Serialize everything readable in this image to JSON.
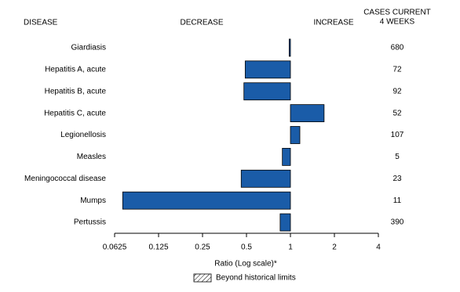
{
  "chart_data": {
    "type": "hbar",
    "column_headers": {
      "disease": "DISEASE",
      "decrease": "DECREASE",
      "increase": "INCREASE",
      "cases": [
        "CASES CURRENT",
        "4 WEEKS"
      ]
    },
    "categories": [
      "Giardiasis",
      "Hepatitis A, acute",
      "Hepatitis B, acute",
      "Hepatitis C, acute",
      "Legionellosis",
      "Measles",
      "Meningococcal disease",
      "Mumps",
      "Pertussis"
    ],
    "values": [
      0.98,
      0.49,
      0.48,
      1.7,
      1.16,
      0.88,
      0.46,
      0.071,
      0.85
    ],
    "cases": [
      680,
      72,
      92,
      52,
      107,
      5,
      23,
      11,
      390
    ],
    "color": "#1a5ca8",
    "log_scale": true,
    "xlim": [
      0.0625,
      4
    ],
    "xticks": [
      0.0625,
      0.125,
      0.25,
      0.5,
      1,
      2,
      4
    ],
    "xlabel": "Ratio (Log scale)*",
    "legend": {
      "label": "Beyond historical limits",
      "pattern": "hatch"
    }
  }
}
